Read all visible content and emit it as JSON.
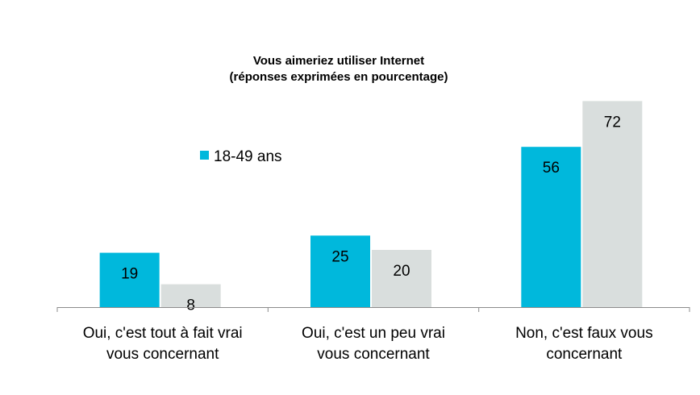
{
  "chart_data": {
    "type": "bar",
    "title": "Vous aimeriez utiliser Internet",
    "subtitle": "(réponses exprimées en pourcentage)",
    "categories": [
      [
        "Oui, c'est tout à fait vrai",
        "vous concernant"
      ],
      [
        "Oui, c'est un peu vrai",
        "vous concernant"
      ],
      [
        "Non, c'est faux vous",
        "concernant"
      ]
    ],
    "series": [
      {
        "name": "18-49 ans",
        "values": [
          19,
          25,
          56
        ],
        "color": "#00b8dc"
      },
      {
        "values": [
          8,
          20,
          72
        ],
        "color": "#d9dedd"
      }
    ],
    "ylim": [
      0,
      80
    ],
    "grid": false,
    "legend": "top-left"
  }
}
